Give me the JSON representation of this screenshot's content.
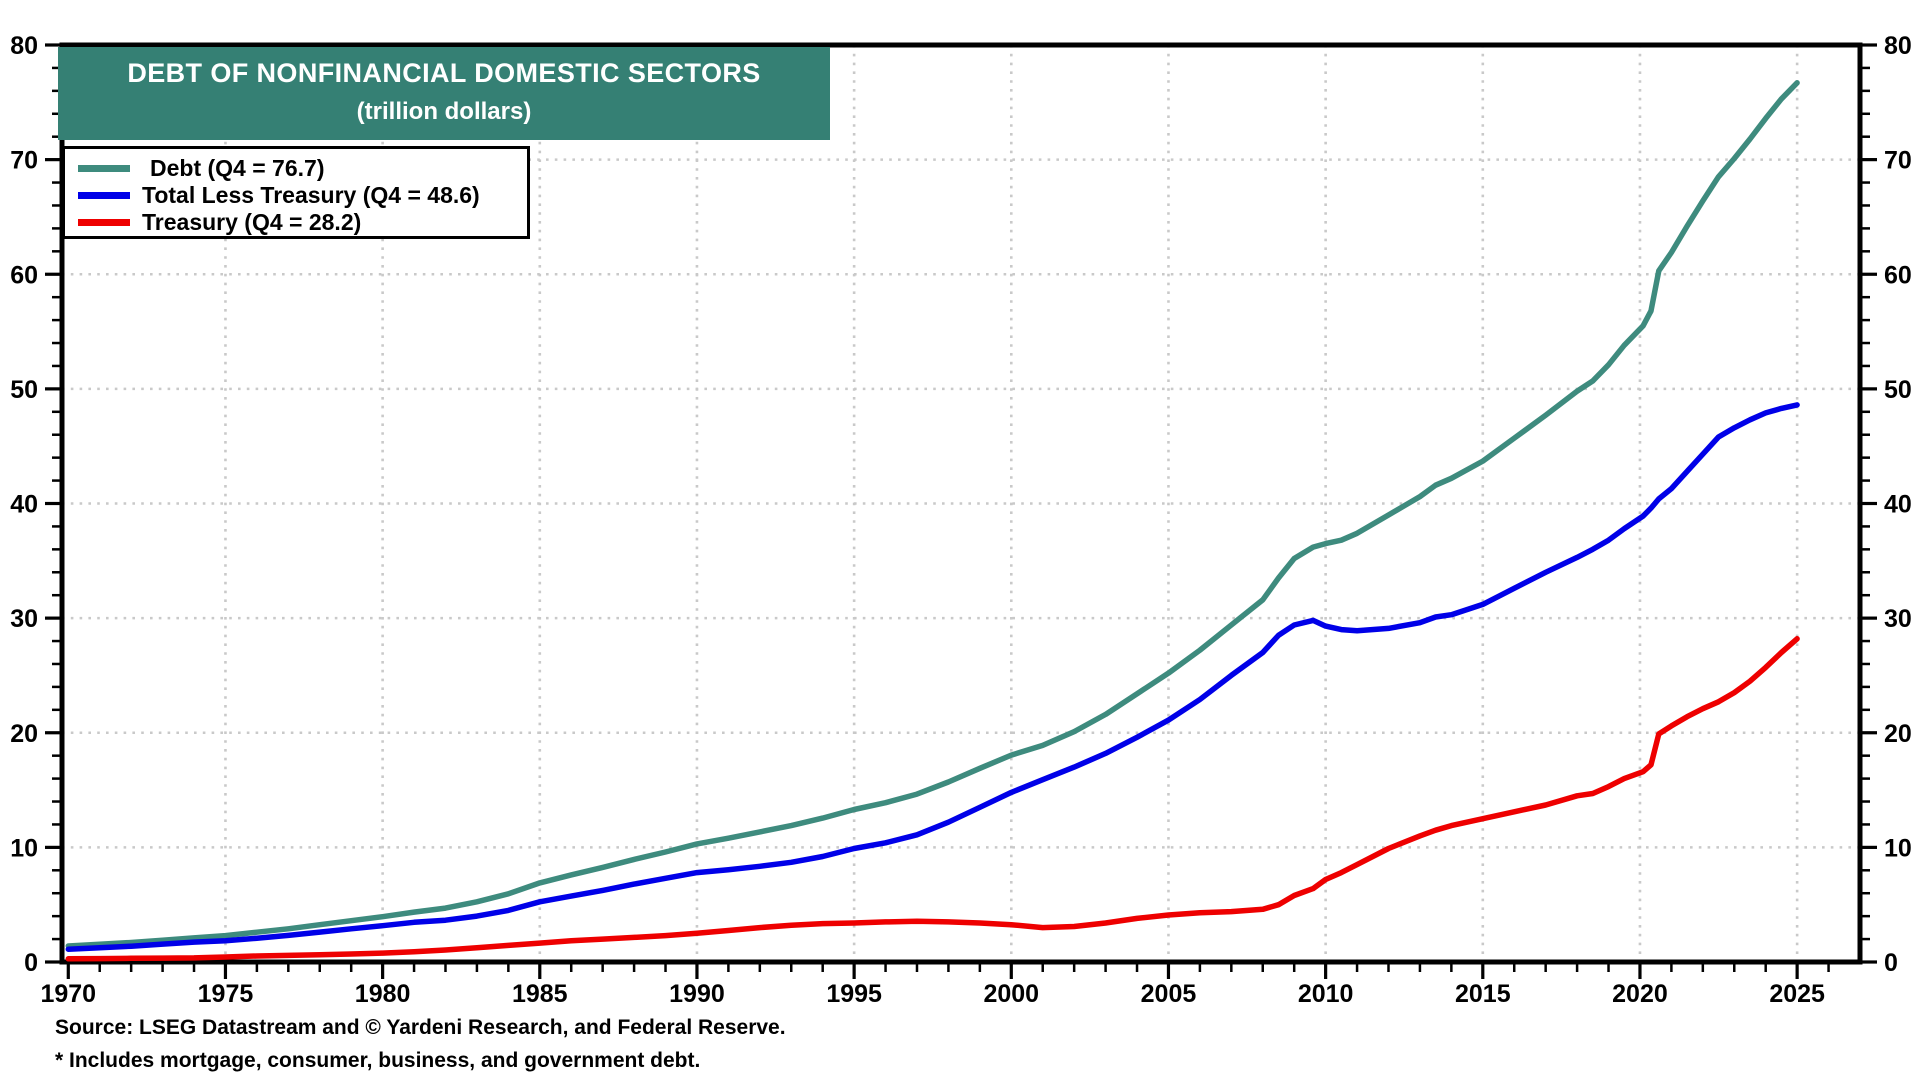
{
  "title": {
    "line1": "DEBT OF NONFINANCIAL DOMESTIC SECTORS",
    "line2": "(trillion dollars)",
    "bg_color": "#358074",
    "text_color": "#ffffff"
  },
  "footer": {
    "source": "Source: LSEG Datastream and © Yardeni Research, and Federal Reserve.",
    "note": "* Includes mortgage, consumer, business, and government debt."
  },
  "chart_data": {
    "type": "line",
    "title": "DEBT OF NONFINANCIAL DOMESTIC SECTORS",
    "subtitle": "(trillion dollars)",
    "legend_position": "top-left",
    "grid": {
      "show": true,
      "color": "#c9c9c9",
      "style": "dotted"
    },
    "frame_color": "#000000",
    "x_axis": {
      "min": 1969.8,
      "max": 2027,
      "major_ticks": [
        1970,
        1975,
        1980,
        1985,
        1990,
        1995,
        2000,
        2005,
        2010,
        2015,
        2020,
        2025
      ],
      "minor_step": 1,
      "minor_range": [
        1970,
        2026
      ],
      "label_format": "year"
    },
    "y_axis": {
      "min": 0,
      "max": 80,
      "major_ticks": [
        0,
        10,
        20,
        30,
        40,
        50,
        60,
        70,
        80
      ],
      "minor_step": 2,
      "sides": "both",
      "grid_ticks": [
        10,
        20,
        30,
        40,
        50,
        60,
        70
      ]
    },
    "series": [
      {
        "name": "Debt",
        "label": "Debt (Q4 = 76.7)",
        "color": "#3E8B7E",
        "points": [
          [
            1970,
            1.4
          ],
          [
            1971,
            1.55
          ],
          [
            1972,
            1.7
          ],
          [
            1973,
            1.9
          ],
          [
            1974,
            2.1
          ],
          [
            1975,
            2.3
          ],
          [
            1976,
            2.6
          ],
          [
            1977,
            2.9
          ],
          [
            1978,
            3.25
          ],
          [
            1979,
            3.6
          ],
          [
            1980,
            3.95
          ],
          [
            1981,
            4.35
          ],
          [
            1982,
            4.7
          ],
          [
            1983,
            5.25
          ],
          [
            1984,
            5.95
          ],
          [
            1985,
            6.9
          ],
          [
            1986,
            7.6
          ],
          [
            1987,
            8.25
          ],
          [
            1988,
            8.95
          ],
          [
            1989,
            9.6
          ],
          [
            1990,
            10.3
          ],
          [
            1991,
            10.8
          ],
          [
            1992,
            11.35
          ],
          [
            1993,
            11.9
          ],
          [
            1994,
            12.55
          ],
          [
            1995,
            13.3
          ],
          [
            1996,
            13.9
          ],
          [
            1997,
            14.65
          ],
          [
            1998,
            15.7
          ],
          [
            1999,
            16.9
          ],
          [
            2000,
            18.05
          ],
          [
            2001,
            18.9
          ],
          [
            2002,
            20.1
          ],
          [
            2003,
            21.6
          ],
          [
            2004,
            23.4
          ],
          [
            2005,
            25.2
          ],
          [
            2006,
            27.2
          ],
          [
            2007,
            29.4
          ],
          [
            2008,
            31.6
          ],
          [
            2008.5,
            33.5
          ],
          [
            2009,
            35.2
          ],
          [
            2009.6,
            36.2
          ],
          [
            2010,
            36.5
          ],
          [
            2010.5,
            36.8
          ],
          [
            2011,
            37.4
          ],
          [
            2012,
            39.0
          ],
          [
            2013,
            40.6
          ],
          [
            2013.5,
            41.6
          ],
          [
            2014,
            42.2
          ],
          [
            2015,
            43.7
          ],
          [
            2016,
            45.7
          ],
          [
            2017,
            47.7
          ],
          [
            2018,
            49.8
          ],
          [
            2018.5,
            50.7
          ],
          [
            2019,
            52.1
          ],
          [
            2019.5,
            53.8
          ],
          [
            2020.1,
            55.5
          ],
          [
            2020.35,
            56.8
          ],
          [
            2020.6,
            60.3
          ],
          [
            2021,
            61.9
          ],
          [
            2021.5,
            64.2
          ],
          [
            2022,
            66.4
          ],
          [
            2022.5,
            68.5
          ],
          [
            2023,
            70.1
          ],
          [
            2023.5,
            71.8
          ],
          [
            2024,
            73.6
          ],
          [
            2024.5,
            75.3
          ],
          [
            2025,
            76.7
          ]
        ]
      },
      {
        "name": "Total Less Treasury",
        "label": "Total Less Treasury (Q4 = 48.6)",
        "color": "#0000E8",
        "points": [
          [
            1970,
            1.12
          ],
          [
            1971,
            1.25
          ],
          [
            1972,
            1.38
          ],
          [
            1973,
            1.56
          ],
          [
            1974,
            1.74
          ],
          [
            1975,
            1.86
          ],
          [
            1976,
            2.08
          ],
          [
            1977,
            2.32
          ],
          [
            1978,
            2.61
          ],
          [
            1979,
            2.9
          ],
          [
            1980,
            3.17
          ],
          [
            1981,
            3.46
          ],
          [
            1982,
            3.65
          ],
          [
            1983,
            4.0
          ],
          [
            1984,
            4.5
          ],
          [
            1985,
            5.25
          ],
          [
            1986,
            5.75
          ],
          [
            1987,
            6.25
          ],
          [
            1988,
            6.8
          ],
          [
            1989,
            7.3
          ],
          [
            1990,
            7.8
          ],
          [
            1991,
            8.05
          ],
          [
            1992,
            8.35
          ],
          [
            1993,
            8.7
          ],
          [
            1994,
            9.2
          ],
          [
            1995,
            9.9
          ],
          [
            1996,
            10.4
          ],
          [
            1997,
            11.1
          ],
          [
            1998,
            12.2
          ],
          [
            1999,
            13.5
          ],
          [
            2000,
            14.8
          ],
          [
            2001,
            15.9
          ],
          [
            2002,
            17.0
          ],
          [
            2003,
            18.2
          ],
          [
            2004,
            19.6
          ],
          [
            2005,
            21.1
          ],
          [
            2006,
            22.9
          ],
          [
            2007,
            25.0
          ],
          [
            2008,
            27.0
          ],
          [
            2008.5,
            28.5
          ],
          [
            2009,
            29.4
          ],
          [
            2009.6,
            29.8
          ],
          [
            2010,
            29.3
          ],
          [
            2010.5,
            29.0
          ],
          [
            2011,
            28.9
          ],
          [
            2012,
            29.1
          ],
          [
            2013,
            29.6
          ],
          [
            2013.5,
            30.1
          ],
          [
            2014,
            30.3
          ],
          [
            2015,
            31.2
          ],
          [
            2016,
            32.6
          ],
          [
            2017,
            34.0
          ],
          [
            2018,
            35.3
          ],
          [
            2018.5,
            36.0
          ],
          [
            2019,
            36.8
          ],
          [
            2019.5,
            37.8
          ],
          [
            2020.1,
            38.9
          ],
          [
            2020.35,
            39.6
          ],
          [
            2020.6,
            40.4
          ],
          [
            2021,
            41.3
          ],
          [
            2021.5,
            42.8
          ],
          [
            2022,
            44.3
          ],
          [
            2022.5,
            45.8
          ],
          [
            2023,
            46.6
          ],
          [
            2023.5,
            47.3
          ],
          [
            2024,
            47.9
          ],
          [
            2024.5,
            48.3
          ],
          [
            2025,
            48.6
          ]
        ]
      },
      {
        "name": "Treasury",
        "label": "Treasury (Q4 = 28.2)",
        "color": "#EE0000",
        "points": [
          [
            1970,
            0.28
          ],
          [
            1971,
            0.3
          ],
          [
            1972,
            0.32
          ],
          [
            1973,
            0.34
          ],
          [
            1974,
            0.36
          ],
          [
            1975,
            0.44
          ],
          [
            1976,
            0.52
          ],
          [
            1977,
            0.58
          ],
          [
            1978,
            0.64
          ],
          [
            1979,
            0.7
          ],
          [
            1980,
            0.78
          ],
          [
            1981,
            0.89
          ],
          [
            1982,
            1.05
          ],
          [
            1983,
            1.25
          ],
          [
            1984,
            1.45
          ],
          [
            1985,
            1.65
          ],
          [
            1986,
            1.85
          ],
          [
            1987,
            2.0
          ],
          [
            1988,
            2.15
          ],
          [
            1989,
            2.3
          ],
          [
            1990,
            2.5
          ],
          [
            1991,
            2.75
          ],
          [
            1992,
            3.0
          ],
          [
            1993,
            3.2
          ],
          [
            1994,
            3.35
          ],
          [
            1995,
            3.4
          ],
          [
            1996,
            3.5
          ],
          [
            1997,
            3.55
          ],
          [
            1998,
            3.5
          ],
          [
            1999,
            3.4
          ],
          [
            2000,
            3.25
          ],
          [
            2001,
            3.0
          ],
          [
            2002,
            3.1
          ],
          [
            2003,
            3.4
          ],
          [
            2004,
            3.8
          ],
          [
            2005,
            4.1
          ],
          [
            2006,
            4.3
          ],
          [
            2007,
            4.4
          ],
          [
            2008,
            4.6
          ],
          [
            2008.5,
            5.0
          ],
          [
            2009,
            5.8
          ],
          [
            2009.6,
            6.4
          ],
          [
            2010,
            7.2
          ],
          [
            2010.5,
            7.8
          ],
          [
            2011,
            8.5
          ],
          [
            2012,
            9.9
          ],
          [
            2013,
            11.0
          ],
          [
            2013.5,
            11.5
          ],
          [
            2014,
            11.9
          ],
          [
            2015,
            12.5
          ],
          [
            2016,
            13.1
          ],
          [
            2017,
            13.7
          ],
          [
            2018,
            14.5
          ],
          [
            2018.5,
            14.7
          ],
          [
            2019,
            15.3
          ],
          [
            2019.5,
            16.0
          ],
          [
            2020.1,
            16.6
          ],
          [
            2020.35,
            17.2
          ],
          [
            2020.6,
            19.9
          ],
          [
            2021,
            20.6
          ],
          [
            2021.5,
            21.4
          ],
          [
            2022,
            22.1
          ],
          [
            2022.5,
            22.7
          ],
          [
            2023,
            23.5
          ],
          [
            2023.5,
            24.5
          ],
          [
            2024,
            25.7
          ],
          [
            2024.5,
            27.0
          ],
          [
            2025,
            28.2
          ]
        ]
      }
    ]
  }
}
